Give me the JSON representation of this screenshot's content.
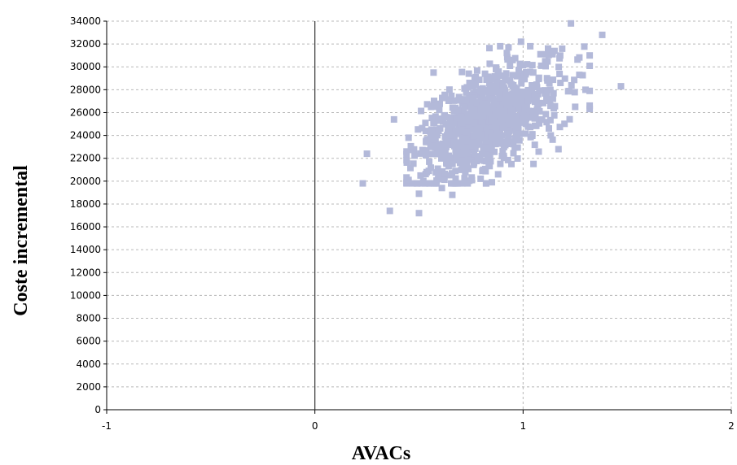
{
  "chart_data": {
    "type": "scatter",
    "xlabel": "AVACs",
    "ylabel": "Coste incremental",
    "xlim": [
      -1,
      2
    ],
    "ylim": [
      0,
      34000
    ],
    "x_ticks": [
      "-1",
      "0",
      "1",
      "2"
    ],
    "y_ticks": [
      "0",
      "2000",
      "4000",
      "6000",
      "8000",
      "10000",
      "12000",
      "14000",
      "16000",
      "18000",
      "20000",
      "22000",
      "24000",
      "26000",
      "28000",
      "30000",
      "32000",
      "34000"
    ],
    "grid": true,
    "marker_color": "#b3b9d9",
    "cloud": {
      "count": 900,
      "x_mean": 0.83,
      "y_mean": 25200,
      "x_sd": 0.17,
      "y_sd": 2500,
      "correlation": 0.55,
      "seed": 7
    },
    "points": [
      {
        "x": 0.23,
        "y": 19800
      },
      {
        "x": 0.25,
        "y": 22400
      },
      {
        "x": 0.36,
        "y": 17400
      },
      {
        "x": 0.38,
        "y": 25400
      },
      {
        "x": 0.45,
        "y": 20100
      },
      {
        "x": 0.5,
        "y": 18900
      },
      {
        "x": 0.5,
        "y": 17200
      },
      {
        "x": 0.45,
        "y": 23800
      },
      {
        "x": 0.55,
        "y": 19800
      },
      {
        "x": 0.61,
        "y": 19400
      },
      {
        "x": 0.66,
        "y": 18800
      },
      {
        "x": 0.57,
        "y": 29500
      },
      {
        "x": 0.89,
        "y": 31800
      },
      {
        "x": 0.93,
        "y": 31700
      },
      {
        "x": 0.99,
        "y": 32200
      },
      {
        "x": 1.12,
        "y": 31600
      },
      {
        "x": 1.23,
        "y": 33800
      },
      {
        "x": 1.38,
        "y": 32800
      },
      {
        "x": 1.47,
        "y": 28300
      },
      {
        "x": 1.3,
        "y": 28000
      },
      {
        "x": 1.32,
        "y": 31000
      },
      {
        "x": 1.27,
        "y": 29300
      },
      {
        "x": 1.25,
        "y": 26500
      },
      {
        "x": 1.17,
        "y": 22800
      },
      {
        "x": 1.05,
        "y": 21500
      },
      {
        "x": 0.85,
        "y": 19900
      },
      {
        "x": 0.72,
        "y": 21600
      },
      {
        "x": 0.88,
        "y": 20600
      }
    ]
  }
}
